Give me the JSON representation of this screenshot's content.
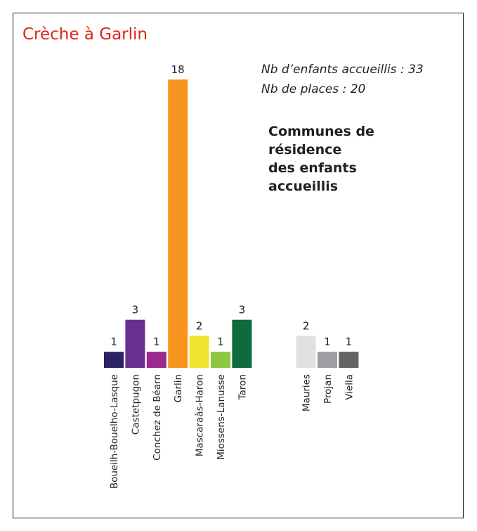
{
  "chart_data": {
    "type": "bar",
    "title": "Crèche à Garlin",
    "notes": [
      "Nb d’enfants accueillis : 33",
      "Nb de places : 20"
    ],
    "heading": [
      "Communes de",
      "résidence",
      "des enfants",
      "accueillis"
    ],
    "categories": [
      "Boueilh-Bouelho-Lasque",
      "Castetpugon",
      "Conchez de Béarn",
      "Garlin",
      "Mascaraàs-Haron",
      "Miossens-Lanusse",
      "Taron",
      "Mauries",
      "Projan",
      "Viella"
    ],
    "values": [
      1,
      3,
      1,
      18,
      2,
      1,
      3,
      2,
      1,
      1
    ],
    "colors": [
      "#2b2163",
      "#6a2e91",
      "#9a2a8f",
      "#f7941d",
      "#f1e42f",
      "#8dc63f",
      "#0e6b3b",
      "#e0e1e2",
      "#9c9ea1",
      "#636466"
    ]
  }
}
